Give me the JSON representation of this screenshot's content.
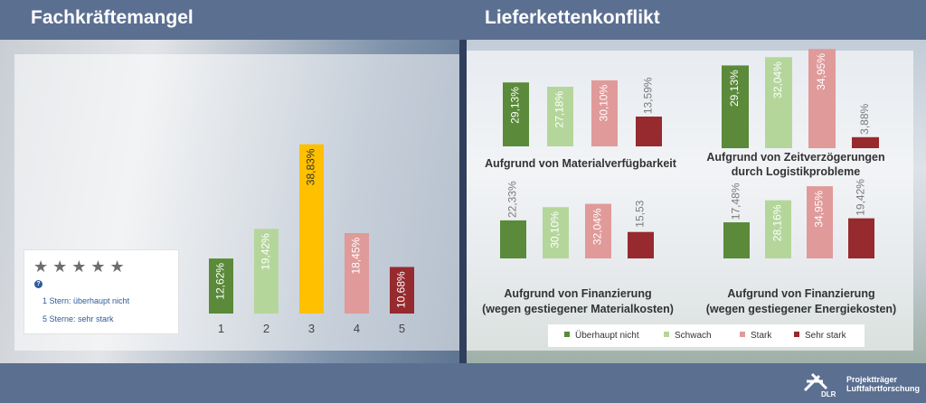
{
  "header": {
    "left_title": "Fachkräftemangel",
    "right_title": "Lieferkettenkonflikt"
  },
  "rating": {
    "stars": "★★★★★",
    "help": "?",
    "line1": "1 Stern: überhaupt nicht",
    "line2": "5 Sterne: sehr stark"
  },
  "legend": {
    "items": [
      {
        "label": "Überhaupt nicht",
        "color": "#5a8a3a"
      },
      {
        "label": "Schwach",
        "color": "#b5d69b"
      },
      {
        "label": "Stark",
        "color": "#e09a9a"
      },
      {
        "label": "Sehr stark",
        "color": "#962a2e"
      }
    ]
  },
  "logo": {
    "line1": "Projektträger",
    "line2": "Luftfahrtforschung",
    "mark": "DLR"
  },
  "chart_data": [
    {
      "id": "fk",
      "type": "bar",
      "title": "Fachkräftemangel",
      "categories": [
        "1",
        "2",
        "3",
        "4",
        "5"
      ],
      "values": [
        12.62,
        19.42,
        38.83,
        18.45,
        10.68
      ],
      "labels": [
        "12,62%",
        "19,42%",
        "38,83%",
        "18,45%",
        "10,68%"
      ],
      "colors": [
        "#5a8a3a",
        "#b5d69b",
        "#ffc000",
        "#e09a9a",
        "#962a2e"
      ],
      "ylim": [
        0,
        40
      ]
    },
    {
      "id": "mv",
      "type": "bar",
      "title": "Aufgrund von Materialverfügbarkeit",
      "categories": [
        "Überhaupt nicht",
        "Schwach",
        "Stark",
        "Sehr stark"
      ],
      "values": [
        29.13,
        27.18,
        30.1,
        13.59
      ],
      "labels": [
        "29,13%",
        "27,18%",
        "30,10%",
        "13,59%"
      ],
      "colors": [
        "#5a8a3a",
        "#b5d69b",
        "#e09a9a",
        "#962a2e"
      ],
      "ylim": [
        0,
        35
      ]
    },
    {
      "id": "zv",
      "type": "bar",
      "title": "Aufgrund von Zeitverzögerungen durch Logistikprobleme",
      "categories": [
        "Überhaupt nicht",
        "Schwach",
        "Stark",
        "Sehr stark"
      ],
      "values": [
        29.13,
        32.04,
        34.95,
        3.88
      ],
      "labels": [
        "29,13%",
        "32,04%",
        "34,95%",
        "3,88%"
      ],
      "colors": [
        "#5a8a3a",
        "#b5d69b",
        "#e09a9a",
        "#962a2e"
      ],
      "ylim": [
        0,
        35
      ]
    },
    {
      "id": "fm",
      "type": "bar",
      "title": "Aufgrund von Finanzierung (wegen gestiegener Materialkosten)",
      "categories": [
        "Überhaupt nicht",
        "Schwach",
        "Stark",
        "Sehr stark"
      ],
      "values": [
        22.33,
        30.1,
        32.04,
        15.53
      ],
      "labels": [
        "22,33%",
        "30,10%",
        "32,04%",
        "15,53"
      ],
      "colors": [
        "#5a8a3a",
        "#b5d69b",
        "#e09a9a",
        "#962a2e"
      ],
      "ylim": [
        0,
        35
      ]
    },
    {
      "id": "fe",
      "type": "bar",
      "title": "Aufgrund von Finanzierung (wegen gestiegener Energiekosten)",
      "categories": [
        "Überhaupt nicht",
        "Schwach",
        "Stark",
        "Sehr stark"
      ],
      "values": [
        17.48,
        28.16,
        34.95,
        19.42
      ],
      "labels": [
        "17,48%",
        "28,16%",
        "34,95%",
        "19,42%"
      ],
      "colors": [
        "#5a8a3a",
        "#b5d69b",
        "#e09a9a",
        "#962a2e"
      ],
      "ylim": [
        0,
        35
      ]
    }
  ]
}
